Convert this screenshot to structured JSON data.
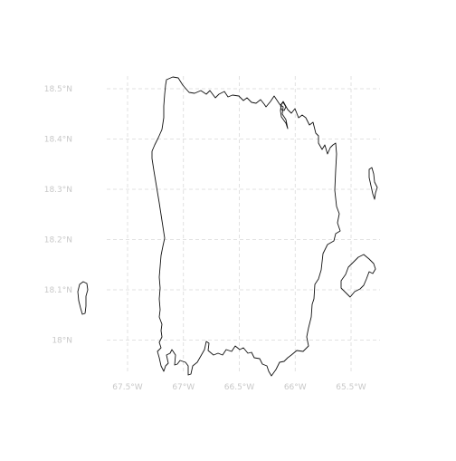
{
  "map": {
    "region": "Puerto Rico",
    "projection_note": "",
    "colors": {
      "grid": "#d9d9d9",
      "tick_label": "#c8c8c8",
      "coastline": "#111111",
      "background": "#ffffff"
    },
    "lat_ticks": [
      {
        "value": 18.5,
        "label": "18.5°N"
      },
      {
        "value": 18.4,
        "label": "18.4°N"
      },
      {
        "value": 18.3,
        "label": "18.3°N"
      },
      {
        "value": 18.2,
        "label": "18.2°N"
      },
      {
        "value": 18.1,
        "label": "18.1°N"
      },
      {
        "value": 18.0,
        "label": "18°N"
      }
    ],
    "lon_ticks": [
      {
        "value": -67.5,
        "label": "67.5°W"
      },
      {
        "value": -67.0,
        "label": "67°W"
      },
      {
        "value": -66.5,
        "label": "66.5°W"
      },
      {
        "value": -66.0,
        "label": "66°W"
      },
      {
        "value": -65.5,
        "label": "65.5°W"
      }
    ],
    "lat_range": [
      17.88,
      18.57
    ],
    "lon_range": [
      -67.7,
      -65.3
    ],
    "features": [
      {
        "name": "main-island",
        "kind": "coastline"
      },
      {
        "name": "mona-island",
        "kind": "coastline"
      },
      {
        "name": "vieques",
        "kind": "coastline"
      },
      {
        "name": "culebra",
        "kind": "coastline"
      },
      {
        "name": "cayo-norte",
        "kind": "coastline"
      }
    ]
  }
}
